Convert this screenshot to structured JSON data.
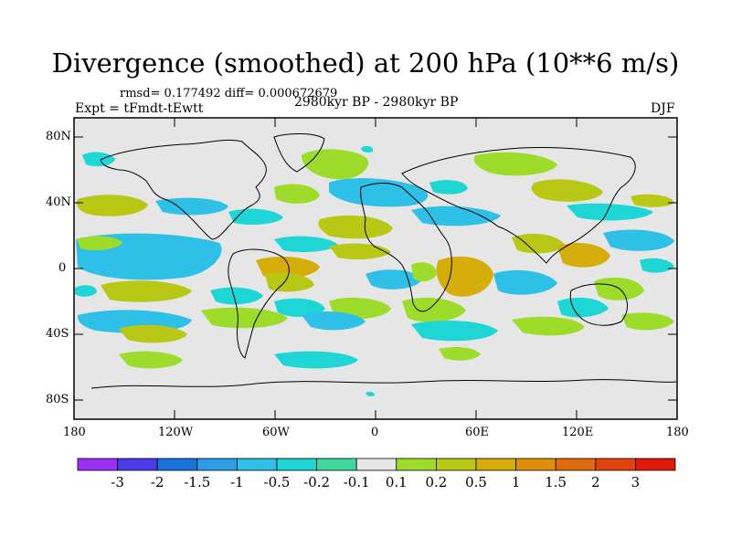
{
  "title": "Divergence (smoothed) at 200 hPa (10**6 m/s)",
  "stats_line": "rmsd= 0.177492 diff= 0.000672679",
  "experiment_label": "Expt = tFmdt-tEwtt",
  "period_label": "2980kyr BP - 2980kyr BP",
  "season_label": "DJF",
  "lat_ticks": [
    "80N",
    "40N",
    "0",
    "40S",
    "80S"
  ],
  "lon_ticks": [
    "180",
    "120W",
    "60W",
    "0",
    "60E",
    "120E",
    "180"
  ],
  "colorbar": {
    "labels": [
      "-3",
      "-2",
      "-1.5",
      "-1",
      "-0.5",
      "-0.2",
      "-0.1",
      "0.1",
      "0.2",
      "0.5",
      "1",
      "1.5",
      "2",
      "3"
    ],
    "colors": [
      "#9b2ff2",
      "#4b3ce8",
      "#1a73dc",
      "#2c9be8",
      "#2fc0e8",
      "#1fd6d6",
      "#3ed89c",
      "#e6e6e6",
      "#9edc2c",
      "#b8c814",
      "#d6ae0c",
      "#e08e0a",
      "#e06a0c",
      "#e2420c",
      "#e01a0a"
    ]
  },
  "map_colors": {
    "background": "#e6e6e6",
    "neg_weak": "#1fd6d6",
    "neg_mid": "#2fc0e8",
    "pos_weak": "#9edc2c",
    "pos_mid": "#b8c814",
    "pos_strong": "#d6ae0c"
  }
}
